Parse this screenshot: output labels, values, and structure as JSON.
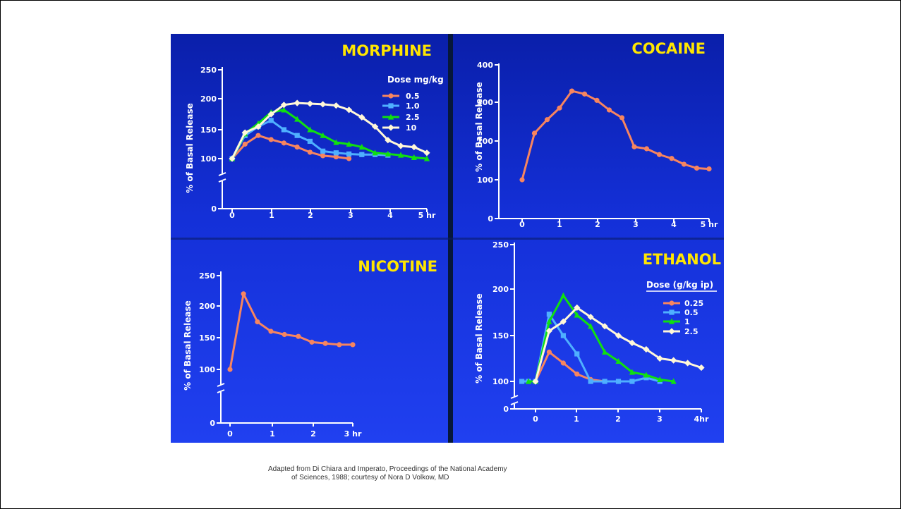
{
  "caption": {
    "line1": "Adapted from Di Chiara and Imperato, Proceedings of the National Academy",
    "line2": "of Sciences, 1988; courtesy of Nora D Volkow, MD"
  },
  "colors": {
    "salmon": "#f7855f",
    "blue": "#4fb0ff",
    "green": "#10e010",
    "white": "#fff8d8"
  },
  "chart_data": [
    {
      "id": "morphine",
      "type": "line",
      "title": "MORPHINE",
      "ylabel": "% of Basal Release",
      "xlabel": "",
      "xticks": [
        "0",
        "1",
        "2",
        "3",
        "4",
        "5 hr"
      ],
      "yticks": [
        "0",
        "100",
        "150",
        "200",
        "250"
      ],
      "legend_title": "Dose mg/kg",
      "legend_position": "top-right",
      "series": [
        {
          "name": "0.5",
          "color": "salmon",
          "marker": "circle",
          "x": [
            0,
            0.33,
            0.67,
            1,
            1.33,
            1.67,
            2,
            2.33,
            2.67,
            3
          ],
          "y": [
            100,
            125,
            140,
            133,
            127,
            120,
            111,
            105,
            103,
            100
          ]
        },
        {
          "name": "1.0",
          "color": "blue",
          "marker": "square",
          "x": [
            0,
            0.33,
            0.67,
            1,
            1.33,
            1.67,
            2,
            2.33,
            2.67,
            3,
            3.33,
            3.67,
            4
          ],
          "y": [
            100,
            140,
            155,
            165,
            150,
            140,
            130,
            113,
            110,
            108,
            107,
            107,
            106
          ]
        },
        {
          "name": "2.5",
          "color": "green",
          "marker": "triangle",
          "x": [
            0,
            0.33,
            0.67,
            1,
            1.33,
            1.67,
            2,
            2.33,
            2.67,
            3,
            3.33,
            3.67,
            4,
            4.33,
            4.67,
            5
          ],
          "y": [
            100,
            143,
            160,
            178,
            182,
            167,
            150,
            140,
            128,
            125,
            120,
            110,
            108,
            106,
            102,
            100
          ]
        },
        {
          "name": "10",
          "color": "white",
          "marker": "diamond",
          "x": [
            0,
            0.33,
            0.67,
            1,
            1.33,
            1.67,
            2,
            2.33,
            2.67,
            3,
            3.33,
            3.67,
            4,
            4.33,
            4.67,
            5
          ],
          "y": [
            100,
            145,
            155,
            175,
            190,
            193,
            192,
            191,
            189,
            182,
            170,
            155,
            132,
            122,
            120,
            110
          ]
        }
      ]
    },
    {
      "id": "cocaine",
      "type": "line",
      "title": "COCAINE",
      "ylabel": "% of Basal Release",
      "xlabel": "",
      "xticks": [
        "0",
        "1",
        "2",
        "3",
        "4",
        "5 hr"
      ],
      "yticks": [
        "0",
        "100",
        "200",
        "300",
        "400"
      ],
      "series": [
        {
          "name": "",
          "color": "salmon",
          "marker": "circle",
          "x": [
            0,
            0.33,
            0.67,
            1,
            1.33,
            1.67,
            2,
            2.33,
            2.67,
            3,
            3.33,
            3.67,
            4,
            4.33,
            4.67,
            5
          ],
          "y": [
            100,
            220,
            255,
            285,
            330,
            322,
            305,
            280,
            260,
            185,
            180,
            165,
            155,
            140,
            130,
            128
          ]
        }
      ]
    },
    {
      "id": "nicotine",
      "type": "line",
      "title": "NICOTINE",
      "ylabel": "% of Basal Release",
      "xlabel": "",
      "xticks": [
        "0",
        "1",
        "2",
        "3 hr"
      ],
      "yticks": [
        "0",
        "100",
        "150",
        "200",
        "250"
      ],
      "series": [
        {
          "name": "",
          "color": "salmon",
          "marker": "circle",
          "x": [
            0,
            0.33,
            0.67,
            1,
            1.33,
            1.67,
            2,
            2.33,
            2.67,
            3
          ],
          "y": [
            100,
            220,
            175,
            160,
            155,
            152,
            143,
            141,
            139,
            139
          ]
        }
      ]
    },
    {
      "id": "ethanol",
      "type": "line",
      "title": "ETHANOL",
      "ylabel": "% of Basal Release",
      "xlabel": "",
      "xticks": [
        "0",
        "1",
        "2",
        "3",
        "4hr"
      ],
      "yticks": [
        "0",
        "100",
        "150",
        "200",
        "250"
      ],
      "legend_title": "Dose (g/kg ip)",
      "legend_position": "right",
      "series": [
        {
          "name": "0.25",
          "color": "salmon",
          "marker": "circle",
          "x": [
            0,
            0.33,
            0.67,
            1,
            1.33,
            1.67
          ],
          "y": [
            100,
            132,
            120,
            108,
            102,
            100
          ]
        },
        {
          "name": "0.5",
          "color": "blue",
          "marker": "square",
          "x": [
            -0.33,
            -0.17,
            0,
            0.33,
            0.67,
            1,
            1.33,
            1.67,
            2,
            2.33,
            2.67,
            3
          ],
          "y": [
            100,
            100,
            100,
            173,
            150,
            130,
            100,
            100,
            100,
            100,
            104,
            100
          ]
        },
        {
          "name": "1",
          "color": "green",
          "marker": "triangle",
          "x": [
            -0.17,
            0,
            0.33,
            0.67,
            1,
            1.33,
            1.67,
            2,
            2.33,
            2.67,
            3,
            3.33
          ],
          "y": [
            100,
            100,
            165,
            193,
            172,
            160,
            132,
            122,
            110,
            107,
            102,
            100
          ]
        },
        {
          "name": "2.5",
          "color": "white",
          "marker": "diamond",
          "x": [
            0,
            0.33,
            0.67,
            1,
            1.33,
            1.67,
            2,
            2.33,
            2.67,
            3,
            3.33,
            3.67,
            4
          ],
          "y": [
            100,
            155,
            165,
            180,
            170,
            160,
            150,
            142,
            135,
            125,
            123,
            120,
            115
          ]
        }
      ]
    }
  ]
}
